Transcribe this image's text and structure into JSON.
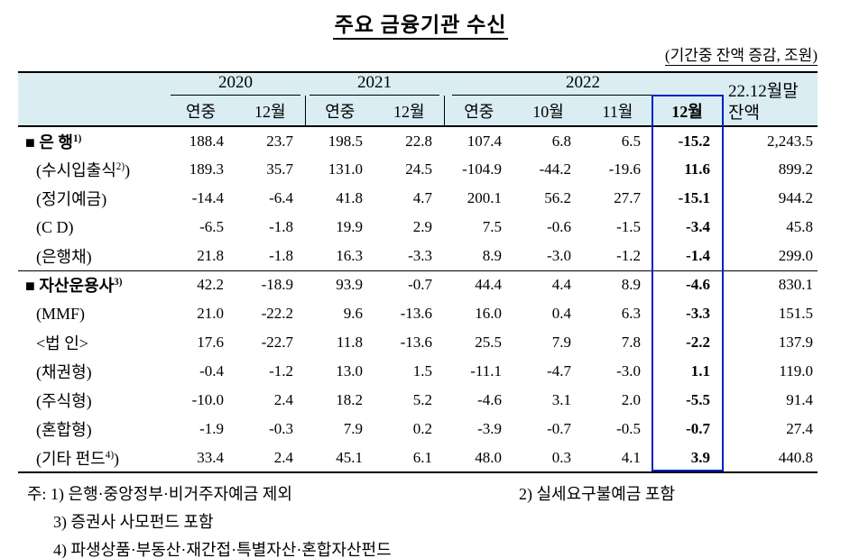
{
  "title": "주요 금융기관 수신",
  "unit_note": "(기간중 잔액 증감, 조원)",
  "colors": {
    "header_bg": "#d9edf3",
    "highlight_border": "#0021c6"
  },
  "table": {
    "year_groups": [
      {
        "label": "2020"
      },
      {
        "label": "2021"
      },
      {
        "label": "2022"
      }
    ],
    "sub_headers": [
      "연중",
      "12월",
      "연중",
      "12월",
      "연중",
      "10월",
      "11월",
      "12월"
    ],
    "balance_header": {
      "line1": "22.12월말",
      "line2": "잔액"
    },
    "rows": [
      {
        "marker": "■",
        "pre": "은 행",
        "sup": "1)",
        "post": "",
        "bold": true,
        "sep_above": false,
        "values": [
          "188.4",
          "23.7",
          "198.5",
          "22.8",
          "107.4",
          "6.8",
          "6.5",
          "-15.2",
          "2,243.5"
        ]
      },
      {
        "marker": "",
        "pre": "(수시입출식",
        "sup": "2)",
        "post": ")",
        "bold": false,
        "sep_above": false,
        "values": [
          "189.3",
          "35.7",
          "131.0",
          "24.5",
          "-104.9",
          "-44.2",
          "-19.6",
          "11.6",
          "899.2"
        ]
      },
      {
        "marker": "",
        "pre": "(정기예금)",
        "sup": "",
        "post": "",
        "bold": false,
        "sep_above": false,
        "values": [
          "-14.4",
          "-6.4",
          "41.8",
          "4.7",
          "200.1",
          "56.2",
          "27.7",
          "-15.1",
          "944.2"
        ]
      },
      {
        "marker": "",
        "pre": "(C D)",
        "sup": "",
        "post": "",
        "bold": false,
        "sep_above": false,
        "values": [
          "-6.5",
          "-1.8",
          "19.9",
          "2.9",
          "7.5",
          "-0.6",
          "-1.5",
          "-3.4",
          "45.8"
        ]
      },
      {
        "marker": "",
        "pre": "(은행채)",
        "sup": "",
        "post": "",
        "bold": false,
        "sep_above": false,
        "values": [
          "21.8",
          "-1.8",
          "16.3",
          "-3.3",
          "8.9",
          "-3.0",
          "-1.2",
          "-1.4",
          "299.0"
        ]
      },
      {
        "marker": "■",
        "pre": "자산운용사",
        "sup": "3)",
        "post": "",
        "bold": true,
        "sep_above": true,
        "values": [
          "42.2",
          "-18.9",
          "93.9",
          "-0.7",
          "44.4",
          "4.4",
          "8.9",
          "-4.6",
          "830.1"
        ]
      },
      {
        "marker": "",
        "pre": "(MMF)",
        "sup": "",
        "post": "",
        "bold": false,
        "sep_above": false,
        "values": [
          "21.0",
          "-22.2",
          "9.6",
          "-13.6",
          "16.0",
          "0.4",
          "6.3",
          "-3.3",
          "151.5"
        ]
      },
      {
        "marker": "",
        "pre": "<법 인>",
        "sup": "",
        "post": "",
        "bold": false,
        "sep_above": false,
        "values": [
          "17.6",
          "-22.7",
          "11.8",
          "-13.6",
          "25.5",
          "7.9",
          "7.8",
          "-2.2",
          "137.9"
        ]
      },
      {
        "marker": "",
        "pre": "(채권형)",
        "sup": "",
        "post": "",
        "bold": false,
        "sep_above": false,
        "values": [
          "-0.4",
          "-1.2",
          "13.0",
          "1.5",
          "-11.1",
          "-4.7",
          "-3.0",
          "1.1",
          "119.0"
        ]
      },
      {
        "marker": "",
        "pre": "(주식형)",
        "sup": "",
        "post": "",
        "bold": false,
        "sep_above": false,
        "values": [
          "-10.0",
          "2.4",
          "18.2",
          "5.2",
          "-4.6",
          "3.1",
          "2.0",
          "-5.5",
          "91.4"
        ]
      },
      {
        "marker": "",
        "pre": "(혼합형)",
        "sup": "",
        "post": "",
        "bold": false,
        "sep_above": false,
        "values": [
          "-1.9",
          "-0.3",
          "7.9",
          "0.2",
          "-3.9",
          "-0.7",
          "-0.5",
          "-0.7",
          "27.4"
        ]
      },
      {
        "marker": "",
        "pre": "(기타 펀드",
        "sup": "4)",
        "post": ")",
        "bold": false,
        "sep_above": false,
        "values": [
          "33.4",
          "2.4",
          "45.1",
          "6.1",
          "48.0",
          "0.3",
          "4.1",
          "3.9",
          "440.8"
        ]
      }
    ]
  },
  "footnotes": {
    "note1": "주: 1) 은행·중앙정부·비거주자예금 제외",
    "note2": "2) 실세요구불예금 포함",
    "note3": "3) 증권사 사모펀드 포함",
    "note4": "4) 파생상품·부동산·재간접·특별자산·혼합자산펀드"
  }
}
